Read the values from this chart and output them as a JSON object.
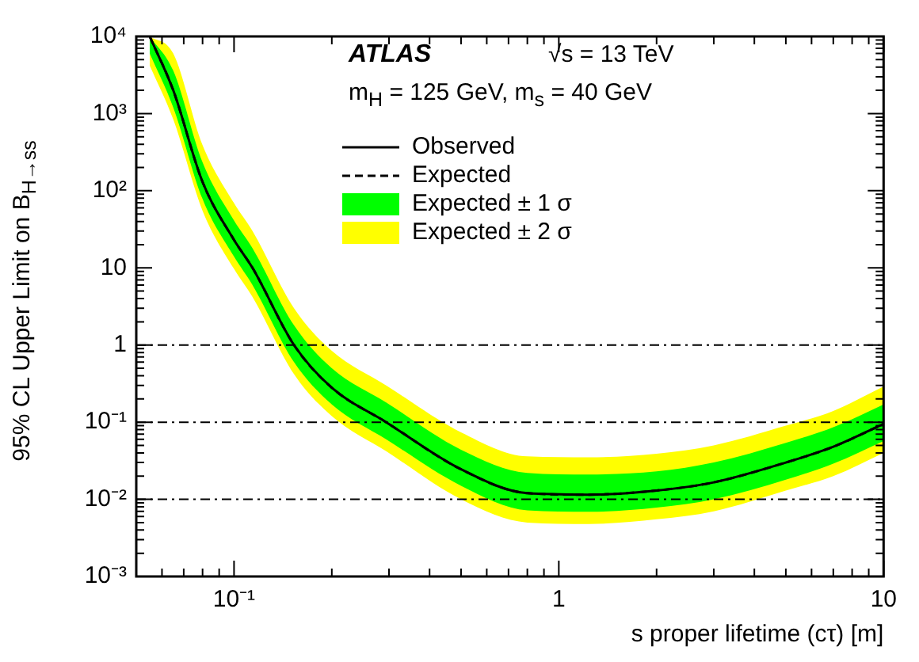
{
  "chart_data": {
    "type": "line",
    "xlabel": "s proper lifetime (cτ) [m]",
    "ylabel": "95% CL Upper Limit on B$_{H→ss}$",
    "annotations": [
      "ATLAS",
      "√s = 13 TeV",
      "m$_{H}$ = 125 GeV, m$_{s}$ = 40 GeV"
    ],
    "x": [
      0.055,
      0.065,
      0.08,
      0.1,
      0.114,
      0.153,
      0.2,
      0.294,
      0.5,
      0.8,
      1.24,
      2,
      3,
      5,
      7,
      10
    ],
    "series": [
      {
        "name": "Expected ± 2 σ",
        "color": "#ffff00",
        "values": [
          null,
          null,
          null,
          null,
          null,
          null,
          null,
          null,
          null,
          null,
          null,
          null,
          null,
          null,
          null,
          null
        ],
        "lower": [
          4200,
          840,
          55,
          9.7,
          4.2,
          0.42,
          0.12,
          0.042,
          0.01,
          0.005,
          0.0048,
          0.0055,
          0.007,
          0.013,
          0.02,
          0.04
        ],
        "upper": [
          10000,
          6000,
          390,
          69,
          30,
          3,
          0.84,
          0.3,
          0.074,
          0.036,
          0.035,
          0.039,
          0.05,
          0.09,
          0.14,
          0.29
        ]
      },
      {
        "name": "Expected ± 1 σ",
        "color": "#00ff00",
        "values": [
          null,
          null,
          null,
          null,
          null,
          null,
          null,
          null,
          null,
          null,
          null,
          null,
          null,
          null,
          null,
          null
        ],
        "lower": [
          6000,
          1200,
          78,
          14,
          6,
          0.6,
          0.17,
          0.06,
          0.015,
          0.0072,
          0.0069,
          0.0078,
          0.01,
          0.018,
          0.029,
          0.057
        ],
        "upper": [
          10000,
          3600,
          234,
          41,
          18,
          1.8,
          0.5,
          0.18,
          0.044,
          0.022,
          0.021,
          0.023,
          0.03,
          0.054,
          0.086,
          0.17
        ]
      },
      {
        "name": "Expected",
        "color": "#000000",
        "line_style": "dashed",
        "values": [
          10000,
          2000,
          130,
          23,
          10,
          1,
          0.28,
          0.1,
          0.0245,
          0.012,
          0.0115,
          0.013,
          0.0166,
          0.03,
          0.048,
          0.095
        ]
      },
      {
        "name": "Observed",
        "color": "#000000",
        "line_style": "solid",
        "values": [
          10000,
          2000,
          130,
          23,
          10,
          1,
          0.28,
          0.1,
          0.0245,
          0.012,
          0.0115,
          0.013,
          0.0166,
          0.03,
          0.048,
          0.095
        ]
      }
    ],
    "log": "xy",
    "xlim": [
      0.05,
      10
    ],
    "xticks": [
      {
        "value": 0.1,
        "label": "10⁻¹"
      },
      1,
      10
    ],
    "ylim": [
      0.001,
      10000
    ],
    "yticks": [
      {
        "value": 0.001,
        "label": "10⁻³"
      },
      {
        "value": 0.01,
        "label": "10⁻²"
      },
      {
        "value": 0.1,
        "label": "10⁻¹"
      },
      1,
      10,
      {
        "value": 100,
        "label": "10²"
      },
      {
        "value": 1000,
        "label": "10³"
      },
      {
        "value": 10000,
        "label": "10⁴"
      }
    ],
    "ref_lines": [
      {
        "axis": "y",
        "value": 1,
        "line_style": "dashed"
      },
      {
        "axis": "y",
        "value": 0.1,
        "line_style": "dashed"
      },
      {
        "axis": "y",
        "value": 0.01,
        "line_style": "dashed"
      }
    ],
    "grid": false,
    "legend": "top",
    "marker": "none"
  }
}
